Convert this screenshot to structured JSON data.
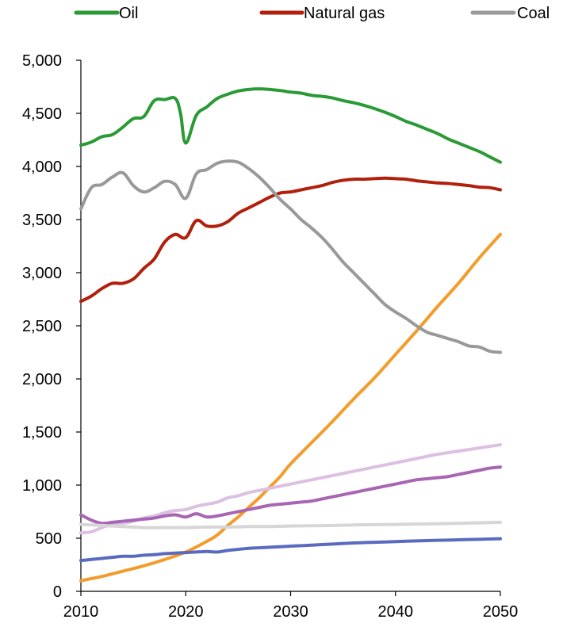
{
  "chart_data": {
    "type": "line",
    "title": "",
    "xlabel": "",
    "ylabel": "",
    "xlim": [
      2010,
      2050
    ],
    "ylim": [
      0,
      5000
    ],
    "x_ticks": [
      2010,
      2020,
      2030,
      2040,
      2050
    ],
    "x_tick_labels": [
      "2010",
      "2020",
      "2030",
      "2040",
      "2050"
    ],
    "y_ticks": [
      0,
      500,
      1000,
      1500,
      2000,
      2500,
      3000,
      3500,
      4000,
      4500,
      5000
    ],
    "y_tick_labels": [
      "0",
      "500",
      "1,000",
      "1,500",
      "2,000",
      "2,500",
      "3,000",
      "3,500",
      "4,000",
      "4,500",
      "5,000"
    ],
    "grid": false,
    "legend_position": "top",
    "series": [
      {
        "name": "Oil",
        "color": "#2a9a36",
        "legend": true,
        "points": [
          [
            2010,
            4200
          ],
          [
            2011,
            4230
          ],
          [
            2012,
            4280
          ],
          [
            2013,
            4300
          ],
          [
            2014,
            4370
          ],
          [
            2015,
            4450
          ],
          [
            2016,
            4470
          ],
          [
            2017,
            4620
          ],
          [
            2018,
            4630
          ],
          [
            2019,
            4640
          ],
          [
            2019.5,
            4500
          ],
          [
            2020,
            4220
          ],
          [
            2021,
            4480
          ],
          [
            2022,
            4560
          ],
          [
            2023,
            4640
          ],
          [
            2024,
            4680
          ],
          [
            2025,
            4710
          ],
          [
            2026,
            4725
          ],
          [
            2027,
            4730
          ],
          [
            2028,
            4725
          ],
          [
            2029,
            4715
          ],
          [
            2030,
            4700
          ],
          [
            2031,
            4690
          ],
          [
            2032,
            4670
          ],
          [
            2033,
            4660
          ],
          [
            2034,
            4645
          ],
          [
            2035,
            4620
          ],
          [
            2036,
            4600
          ],
          [
            2037,
            4575
          ],
          [
            2038,
            4545
          ],
          [
            2039,
            4510
          ],
          [
            2040,
            4470
          ],
          [
            2041,
            4425
          ],
          [
            2042,
            4390
          ],
          [
            2043,
            4350
          ],
          [
            2044,
            4310
          ],
          [
            2045,
            4260
          ],
          [
            2046,
            4220
          ],
          [
            2047,
            4180
          ],
          [
            2048,
            4140
          ],
          [
            2049,
            4090
          ],
          [
            2050,
            4040
          ]
        ]
      },
      {
        "name": "Natural gas",
        "color": "#b0200c",
        "legend": true,
        "points": [
          [
            2010,
            2730
          ],
          [
            2011,
            2780
          ],
          [
            2012,
            2850
          ],
          [
            2013,
            2900
          ],
          [
            2014,
            2900
          ],
          [
            2015,
            2940
          ],
          [
            2016,
            3040
          ],
          [
            2017,
            3130
          ],
          [
            2018,
            3290
          ],
          [
            2019,
            3360
          ],
          [
            2020,
            3330
          ],
          [
            2021,
            3490
          ],
          [
            2022,
            3440
          ],
          [
            2023,
            3440
          ],
          [
            2024,
            3480
          ],
          [
            2025,
            3560
          ],
          [
            2026,
            3610
          ],
          [
            2027,
            3660
          ],
          [
            2028,
            3710
          ],
          [
            2029,
            3750
          ],
          [
            2030,
            3760
          ],
          [
            2031,
            3780
          ],
          [
            2032,
            3800
          ],
          [
            2033,
            3820
          ],
          [
            2034,
            3850
          ],
          [
            2035,
            3870
          ],
          [
            2036,
            3880
          ],
          [
            2037,
            3880
          ],
          [
            2038,
            3885
          ],
          [
            2039,
            3890
          ],
          [
            2040,
            3885
          ],
          [
            2041,
            3880
          ],
          [
            2042,
            3865
          ],
          [
            2043,
            3855
          ],
          [
            2044,
            3845
          ],
          [
            2045,
            3840
          ],
          [
            2046,
            3830
          ],
          [
            2047,
            3820
          ],
          [
            2048,
            3805
          ],
          [
            2049,
            3800
          ],
          [
            2050,
            3780
          ]
        ]
      },
      {
        "name": "Coal",
        "color": "#999999",
        "legend": true,
        "points": [
          [
            2010,
            3600
          ],
          [
            2011,
            3800
          ],
          [
            2012,
            3830
          ],
          [
            2013,
            3900
          ],
          [
            2014,
            3940
          ],
          [
            2015,
            3820
          ],
          [
            2016,
            3760
          ],
          [
            2017,
            3800
          ],
          [
            2018,
            3860
          ],
          [
            2019,
            3830
          ],
          [
            2020,
            3700
          ],
          [
            2021,
            3930
          ],
          [
            2022,
            3970
          ],
          [
            2023,
            4030
          ],
          [
            2024,
            4050
          ],
          [
            2025,
            4040
          ],
          [
            2026,
            3980
          ],
          [
            2027,
            3900
          ],
          [
            2028,
            3800
          ],
          [
            2029,
            3690
          ],
          [
            2030,
            3600
          ],
          [
            2031,
            3500
          ],
          [
            2032,
            3420
          ],
          [
            2033,
            3330
          ],
          [
            2034,
            3220
          ],
          [
            2035,
            3100
          ],
          [
            2036,
            3000
          ],
          [
            2037,
            2900
          ],
          [
            2038,
            2800
          ],
          [
            2039,
            2700
          ],
          [
            2040,
            2630
          ],
          [
            2041,
            2570
          ],
          [
            2042,
            2500
          ],
          [
            2043,
            2440
          ],
          [
            2044,
            2410
          ],
          [
            2045,
            2380
          ],
          [
            2046,
            2350
          ],
          [
            2047,
            2310
          ],
          [
            2048,
            2300
          ],
          [
            2049,
            2260
          ],
          [
            2050,
            2250
          ]
        ]
      },
      {
        "name": "",
        "color": "#f39c2b",
        "legend": false,
        "points": [
          [
            2010,
            100
          ],
          [
            2012,
            140
          ],
          [
            2014,
            190
          ],
          [
            2016,
            240
          ],
          [
            2018,
            300
          ],
          [
            2020,
            370
          ],
          [
            2022,
            470
          ],
          [
            2023,
            530
          ],
          [
            2024,
            620
          ],
          [
            2025,
            700
          ],
          [
            2026,
            790
          ],
          [
            2027,
            880
          ],
          [
            2028,
            980
          ],
          [
            2029,
            1080
          ],
          [
            2030,
            1200
          ],
          [
            2032,
            1400
          ],
          [
            2034,
            1600
          ],
          [
            2036,
            1810
          ],
          [
            2038,
            2010
          ],
          [
            2040,
            2230
          ],
          [
            2042,
            2450
          ],
          [
            2044,
            2680
          ],
          [
            2046,
            2900
          ],
          [
            2048,
            3140
          ],
          [
            2050,
            3360
          ]
        ]
      },
      {
        "name": "",
        "color": "#dcc0e2",
        "legend": false,
        "points": [
          [
            2010,
            550
          ],
          [
            2011,
            560
          ],
          [
            2012,
            600
          ],
          [
            2013,
            630
          ],
          [
            2014,
            640
          ],
          [
            2015,
            660
          ],
          [
            2016,
            690
          ],
          [
            2017,
            710
          ],
          [
            2018,
            740
          ],
          [
            2019,
            760
          ],
          [
            2020,
            770
          ],
          [
            2021,
            800
          ],
          [
            2022,
            820
          ],
          [
            2023,
            840
          ],
          [
            2024,
            880
          ],
          [
            2025,
            900
          ],
          [
            2026,
            930
          ],
          [
            2027,
            950
          ],
          [
            2028,
            970
          ],
          [
            2029,
            990
          ],
          [
            2030,
            1010
          ],
          [
            2032,
            1050
          ],
          [
            2034,
            1090
          ],
          [
            2036,
            1130
          ],
          [
            2038,
            1170
          ],
          [
            2040,
            1210
          ],
          [
            2042,
            1250
          ],
          [
            2044,
            1290
          ],
          [
            2046,
            1320
          ],
          [
            2048,
            1350
          ],
          [
            2050,
            1380
          ]
        ]
      },
      {
        "name": "",
        "color": "#a865b4",
        "legend": false,
        "points": [
          [
            2010,
            720
          ],
          [
            2011,
            670
          ],
          [
            2012,
            640
          ],
          [
            2013,
            650
          ],
          [
            2014,
            660
          ],
          [
            2015,
            670
          ],
          [
            2016,
            680
          ],
          [
            2017,
            690
          ],
          [
            2018,
            710
          ],
          [
            2019,
            720
          ],
          [
            2020,
            700
          ],
          [
            2021,
            730
          ],
          [
            2022,
            700
          ],
          [
            2023,
            710
          ],
          [
            2024,
            730
          ],
          [
            2025,
            750
          ],
          [
            2026,
            770
          ],
          [
            2027,
            790
          ],
          [
            2028,
            810
          ],
          [
            2029,
            820
          ],
          [
            2030,
            830
          ],
          [
            2031,
            840
          ],
          [
            2032,
            850
          ],
          [
            2033,
            870
          ],
          [
            2034,
            890
          ],
          [
            2035,
            910
          ],
          [
            2036,
            930
          ],
          [
            2037,
            950
          ],
          [
            2038,
            970
          ],
          [
            2039,
            990
          ],
          [
            2040,
            1010
          ],
          [
            2041,
            1030
          ],
          [
            2042,
            1050
          ],
          [
            2043,
            1060
          ],
          [
            2044,
            1070
          ],
          [
            2045,
            1080
          ],
          [
            2046,
            1100
          ],
          [
            2047,
            1120
          ],
          [
            2048,
            1140
          ],
          [
            2049,
            1160
          ],
          [
            2050,
            1170
          ]
        ]
      },
      {
        "name": "",
        "color": "#d6d6d6",
        "legend": false,
        "points": [
          [
            2010,
            630
          ],
          [
            2012,
            620
          ],
          [
            2014,
            610
          ],
          [
            2016,
            600
          ],
          [
            2018,
            600
          ],
          [
            2020,
            600
          ],
          [
            2022,
            605
          ],
          [
            2024,
            605
          ],
          [
            2026,
            610
          ],
          [
            2028,
            610
          ],
          [
            2030,
            615
          ],
          [
            2032,
            618
          ],
          [
            2034,
            620
          ],
          [
            2036,
            625
          ],
          [
            2038,
            628
          ],
          [
            2040,
            630
          ],
          [
            2042,
            633
          ],
          [
            2044,
            636
          ],
          [
            2046,
            640
          ],
          [
            2048,
            645
          ],
          [
            2050,
            650
          ]
        ]
      },
      {
        "name": "",
        "color": "#5a6abf",
        "legend": false,
        "points": [
          [
            2010,
            290
          ],
          [
            2011,
            300
          ],
          [
            2012,
            310
          ],
          [
            2013,
            320
          ],
          [
            2014,
            330
          ],
          [
            2015,
            330
          ],
          [
            2016,
            340
          ],
          [
            2017,
            345
          ],
          [
            2018,
            355
          ],
          [
            2019,
            360
          ],
          [
            2020,
            365
          ],
          [
            2021,
            370
          ],
          [
            2022,
            375
          ],
          [
            2023,
            370
          ],
          [
            2024,
            385
          ],
          [
            2025,
            395
          ],
          [
            2026,
            405
          ],
          [
            2027,
            410
          ],
          [
            2028,
            415
          ],
          [
            2029,
            420
          ],
          [
            2030,
            425
          ],
          [
            2032,
            435
          ],
          [
            2034,
            445
          ],
          [
            2036,
            455
          ],
          [
            2038,
            462
          ],
          [
            2040,
            468
          ],
          [
            2042,
            475
          ],
          [
            2044,
            480
          ],
          [
            2046,
            485
          ],
          [
            2048,
            490
          ],
          [
            2050,
            495
          ]
        ]
      }
    ]
  }
}
